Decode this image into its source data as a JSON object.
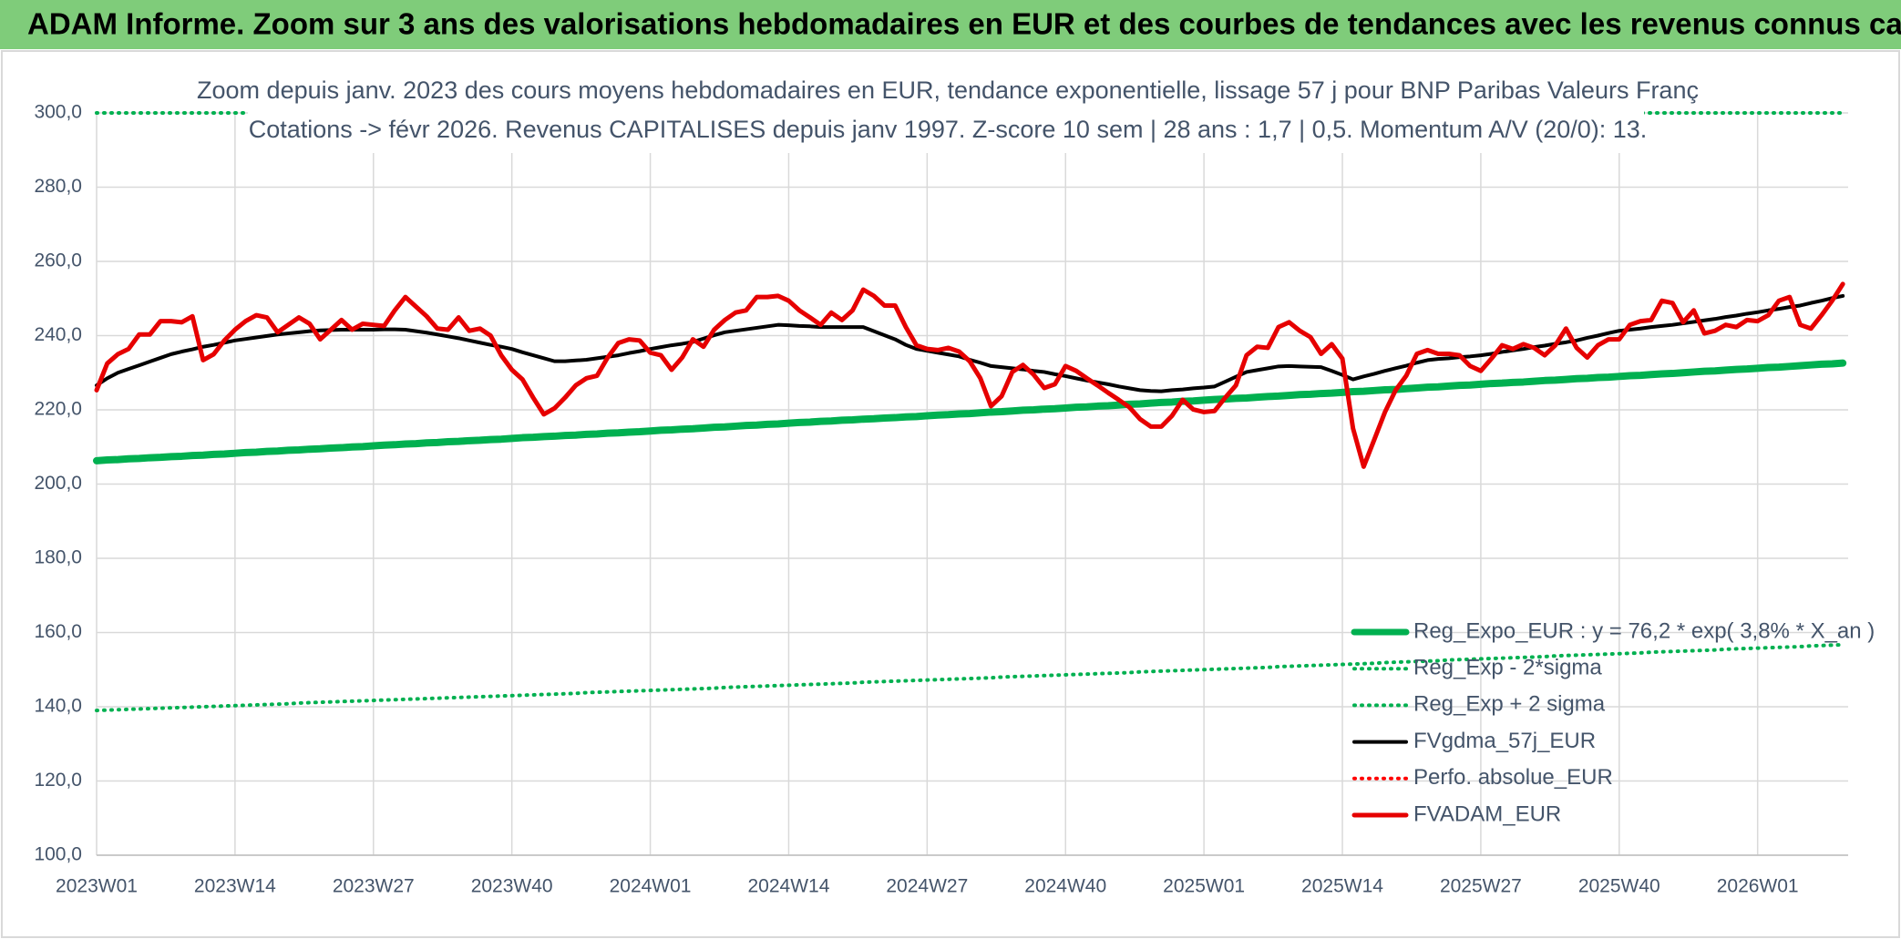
{
  "header": {
    "title": "ADAM Informe. Zoom sur 3 ans des valorisations hebdomadaires en EUR et des courbes de tendances avec les revenus connus capitalisés"
  },
  "chart_data": {
    "type": "line",
    "title": "Zoom depuis janv. 2023 des cours moyens hebdomadaires en EUR, tendance exponentielle, lissage 57 j pour BNP Paribas Valeurs Franç",
    "subtitle": "Cotations -> févr 2026. Revenus CAPITALISES depuis janv 1997. Z-score 10 sem | 28 ans : 1,7 | 0,5. Momentum A/V (20/0): 13.",
    "categories": [
      "2023W01",
      null,
      null,
      null,
      null,
      null,
      null,
      null,
      null,
      null,
      null,
      null,
      null,
      "2023W14",
      null,
      null,
      null,
      null,
      null,
      null,
      null,
      null,
      null,
      null,
      null,
      null,
      "2023W27",
      null,
      null,
      null,
      null,
      null,
      null,
      null,
      null,
      null,
      null,
      null,
      null,
      "2023W40",
      null,
      null,
      null,
      null,
      null,
      null,
      null,
      null,
      null,
      null,
      null,
      null,
      "2024W01",
      null,
      null,
      null,
      null,
      null,
      null,
      null,
      null,
      null,
      null,
      null,
      null,
      "2024W14",
      null,
      null,
      null,
      null,
      null,
      null,
      null,
      null,
      null,
      null,
      null,
      null,
      "2024W27",
      null,
      null,
      null,
      null,
      null,
      null,
      null,
      null,
      null,
      null,
      null,
      null,
      "2024W40",
      null,
      null,
      null,
      null,
      null,
      null,
      null,
      null,
      null,
      null,
      null,
      null,
      "2025W01",
      null,
      null,
      null,
      null,
      null,
      null,
      null,
      null,
      null,
      null,
      null,
      null,
      "2025W14",
      null,
      null,
      null,
      null,
      null,
      null,
      null,
      null,
      null,
      null,
      null,
      null,
      "2025W27",
      null,
      null,
      null,
      null,
      null,
      null,
      null,
      null,
      null,
      null,
      null,
      null,
      "2025W40",
      null,
      null,
      null,
      null,
      null,
      null,
      null,
      null,
      null,
      null,
      null,
      null,
      "2026W01",
      null,
      null,
      null,
      null,
      null,
      null,
      null,
      null
    ],
    "ylim": [
      100,
      300
    ],
    "yticks": [
      {
        "value": 100,
        "label": "100,0"
      },
      {
        "value": 120,
        "label": "120,0"
      },
      {
        "value": 140,
        "label": "140,0"
      },
      {
        "value": 160,
        "label": "160,0"
      },
      {
        "value": 180,
        "label": "180,0"
      },
      {
        "value": 200,
        "label": "200,0"
      },
      {
        "value": 220,
        "label": "220,0"
      },
      {
        "value": 240,
        "label": "240,0"
      },
      {
        "value": 260,
        "label": "260,0"
      },
      {
        "value": 280,
        "label": "280,0"
      },
      {
        "value": 300,
        "label": "300,0"
      }
    ],
    "grid": true,
    "legend": "lower right",
    "series": [
      {
        "name": "Reg_Expo_EUR : y = 76,2 * exp( 3,8% *  X_an )",
        "color": "#00b050",
        "style": "thick",
        "values": [
          206.3,
          206.5,
          206.6,
          206.8,
          206.9,
          207.1,
          207.2,
          207.4,
          207.5,
          207.7,
          207.8,
          208.0,
          208.1,
          208.3,
          208.5,
          208.6,
          208.8,
          208.9,
          209.1,
          209.2,
          209.4,
          209.5,
          209.7,
          209.8,
          210.0,
          210.1,
          210.3,
          210.5,
          210.6,
          210.8,
          210.9,
          211.1,
          211.2,
          211.4,
          211.5,
          211.7,
          211.8,
          212.0,
          212.1,
          212.3,
          212.5,
          212.6,
          212.8,
          212.9,
          213.1,
          213.2,
          213.4,
          213.5,
          213.7,
          213.8,
          214.0,
          214.1,
          214.3,
          214.5,
          214.6,
          214.8,
          214.9,
          215.1,
          215.3,
          215.4,
          215.6,
          215.8,
          215.9,
          216.1,
          216.2,
          216.4,
          216.6,
          216.7,
          216.9,
          217.0,
          217.2,
          217.3,
          217.5,
          217.6,
          217.8,
          217.9,
          218.1,
          218.2,
          218.4,
          218.6,
          218.7,
          218.9,
          219.0,
          219.2,
          219.4,
          219.5,
          219.7,
          219.9,
          220.0,
          220.2,
          220.3,
          220.5,
          220.7,
          220.8,
          221.0,
          221.1,
          221.3,
          221.5,
          221.6,
          221.8,
          222.0,
          222.1,
          222.3,
          222.4,
          222.6,
          222.8,
          222.9,
          223.1,
          223.2,
          223.4,
          223.6,
          223.7,
          223.9,
          224.1,
          224.2,
          224.4,
          224.5,
          224.7,
          224.9,
          225.0,
          225.2,
          225.4,
          225.5,
          225.7,
          225.9,
          226.1,
          226.2,
          226.4,
          226.6,
          226.7,
          226.9,
          227.1,
          227.2,
          227.4,
          227.5,
          227.7,
          227.9,
          228.0,
          228.2,
          228.4,
          228.5,
          228.7,
          228.8,
          229.0,
          229.2,
          229.3,
          229.5,
          229.7,
          229.8,
          230.0,
          230.2,
          230.4,
          230.5,
          230.7,
          230.9,
          231.0,
          231.2,
          231.4,
          231.5,
          231.7,
          231.9,
          232.1,
          232.3,
          232.4,
          232.6
        ]
      },
      {
        "name": "Reg_Exp - 2*sigma",
        "color": "#00b050",
        "style": "dotted",
        "values": [
          139.0,
          139.1,
          139.2,
          139.3,
          139.4,
          139.5,
          139.6,
          139.7,
          139.8,
          139.9,
          140.0,
          140.1,
          140.2,
          140.3,
          140.4,
          140.5,
          140.6,
          140.7,
          140.8,
          141.0,
          141.1,
          141.2,
          141.3,
          141.4,
          141.5,
          141.6,
          141.7,
          141.8,
          141.9,
          142.0,
          142.1,
          142.2,
          142.3,
          142.4,
          142.5,
          142.6,
          142.7,
          142.8,
          142.9,
          143.0,
          143.1,
          143.2,
          143.3,
          143.4,
          143.5,
          143.6,
          143.8,
          143.9,
          144.0,
          144.1,
          144.2,
          144.3,
          144.4,
          144.5,
          144.6,
          144.7,
          144.8,
          144.9,
          145.0,
          145.2,
          145.3,
          145.4,
          145.5,
          145.6,
          145.7,
          145.8,
          145.9,
          146.0,
          146.1,
          146.2,
          146.3,
          146.4,
          146.6,
          146.7,
          146.8,
          146.9,
          147.0,
          147.1,
          147.2,
          147.3,
          147.4,
          147.5,
          147.6,
          147.7,
          147.8,
          148.0,
          148.1,
          148.2,
          148.3,
          148.4,
          148.5,
          148.6,
          148.7,
          148.8,
          148.9,
          149.0,
          149.1,
          149.2,
          149.4,
          149.5,
          149.6,
          149.7,
          149.8,
          149.9,
          150.0,
          150.1,
          150.2,
          150.3,
          150.4,
          150.5,
          150.6,
          150.8,
          150.9,
          151.0,
          151.1,
          151.2,
          151.3,
          151.4,
          151.5,
          151.6,
          151.7,
          151.9,
          152.0,
          152.1,
          152.2,
          152.3,
          152.4,
          152.6,
          152.7,
          152.8,
          152.9,
          153.0,
          153.1,
          153.2,
          153.3,
          153.4,
          153.5,
          153.7,
          153.8,
          153.9,
          154.0,
          154.1,
          154.2,
          154.3,
          154.4,
          154.5,
          154.7,
          154.8,
          154.9,
          155.0,
          155.1,
          155.2,
          155.3,
          155.5,
          155.6,
          155.7,
          155.8,
          155.9,
          156.0,
          156.1,
          156.2,
          156.4,
          156.5,
          156.6,
          156.7
        ]
      },
      {
        "name": "Reg_Exp + 2 sigma",
        "color": "#00b050",
        "style": "dotted",
        "values": [
          300,
          300,
          300,
          300,
          300,
          300,
          300,
          300,
          300,
          300,
          300,
          300,
          300,
          300,
          300,
          300,
          300,
          300,
          300,
          300,
          300,
          300,
          300,
          300,
          300,
          300,
          300,
          300,
          300,
          300,
          300,
          300,
          300,
          300,
          300,
          300,
          300,
          300,
          300,
          300,
          300,
          300,
          300,
          300,
          300,
          300,
          300,
          300,
          300,
          300,
          300,
          300,
          300,
          300,
          300,
          300,
          300,
          300,
          300,
          300,
          300,
          300,
          300,
          300,
          300,
          300,
          300,
          300,
          300,
          300,
          300,
          300,
          300,
          300,
          300,
          300,
          300,
          300,
          300,
          300,
          300,
          300,
          300,
          300,
          300,
          300,
          300,
          300,
          300,
          300,
          300,
          300,
          300,
          300,
          300,
          300,
          300,
          300,
          300,
          300,
          300,
          300,
          300,
          300,
          300,
          300,
          300,
          300,
          300,
          300,
          300,
          300,
          300,
          300,
          300,
          300,
          300,
          300,
          300,
          300,
          300,
          300,
          300,
          300,
          300,
          300,
          300,
          300,
          300,
          300,
          300,
          300,
          300,
          300,
          300,
          300,
          300,
          300,
          300,
          300,
          300,
          300,
          300,
          300,
          300,
          300,
          300,
          300,
          300,
          300,
          300,
          300,
          300,
          300,
          300,
          300,
          300,
          300,
          300,
          300,
          300,
          300,
          300,
          300,
          300
        ]
      },
      {
        "name": "FVgdma_57j_EUR",
        "color": "#000000",
        "style": "solid",
        "values": [
          226.6,
          228.5,
          230.0,
          231.0,
          232.0,
          233.0,
          234.0,
          235.0,
          235.7,
          236.3,
          237.0,
          237.5,
          238.1,
          238.7,
          239.1,
          239.5,
          239.9,
          240.3,
          240.6,
          240.9,
          241.2,
          241.4,
          241.5,
          241.6,
          241.6,
          241.6,
          241.6,
          241.7,
          241.7,
          241.6,
          241.2,
          240.8,
          240.3,
          239.8,
          239.3,
          238.7,
          238.1,
          237.5,
          237.0,
          236.4,
          235.5,
          234.7,
          233.9,
          233.1,
          233.1,
          233.3,
          233.5,
          233.9,
          234.3,
          234.7,
          235.3,
          235.8,
          236.4,
          236.9,
          237.4,
          237.8,
          238.3,
          239.2,
          240.1,
          240.9,
          241.3,
          241.7,
          242.1,
          242.5,
          242.9,
          242.8,
          242.6,
          242.5,
          242.3,
          242.3,
          242.3,
          242.3,
          242.3,
          241.2,
          240.1,
          239.0,
          237.5,
          236.4,
          235.9,
          235.4,
          234.9,
          234.4,
          233.5,
          232.7,
          231.8,
          231.5,
          231.2,
          230.9,
          230.5,
          230.2,
          229.6,
          229.1,
          228.5,
          227.9,
          227.4,
          226.9,
          226.3,
          225.8,
          225.3,
          225.1,
          225.0,
          225.3,
          225.5,
          225.8,
          226.0,
          226.3,
          227.6,
          228.9,
          230.2,
          230.7,
          231.2,
          231.7,
          231.8,
          231.7,
          231.6,
          231.5,
          230.5,
          229.4,
          228.2,
          229.0,
          229.7,
          230.5,
          231.2,
          231.9,
          232.7,
          233.4,
          233.7,
          233.9,
          234.2,
          234.4,
          234.7,
          235.1,
          235.6,
          236.0,
          236.4,
          236.9,
          237.3,
          237.8,
          238.2,
          238.7,
          239.4,
          240.0,
          240.7,
          241.3,
          241.6,
          241.9,
          242.3,
          242.6,
          242.9,
          243.3,
          243.7,
          244.1,
          244.5,
          245.0,
          245.4,
          245.9,
          246.3,
          246.8,
          247.2,
          247.7,
          248.1,
          248.8,
          249.4,
          250.1,
          250.7
        ]
      },
      {
        "name": "Perfo. absolue_EUR",
        "color": "#ff0000",
        "style": "dotted"
      },
      {
        "name": "FVADAM_EUR",
        "color": "#e60000",
        "style": "red",
        "values": [
          225.3,
          232.5,
          235.0,
          236.4,
          240.3,
          240.3,
          243.9,
          243.9,
          243.6,
          245.2,
          233.4,
          235.0,
          238.7,
          241.6,
          243.9,
          245.5,
          244.9,
          240.9,
          242.9,
          244.9,
          243.2,
          239.0,
          241.6,
          244.2,
          241.6,
          243.2,
          242.9,
          242.6,
          246.8,
          250.4,
          247.8,
          245.2,
          241.9,
          241.6,
          244.9,
          241.3,
          241.9,
          240.0,
          234.7,
          230.8,
          228.2,
          223.3,
          218.8,
          220.4,
          223.3,
          226.6,
          228.5,
          229.2,
          234.1,
          238.0,
          239.0,
          238.7,
          235.4,
          234.7,
          230.8,
          234.1,
          239.0,
          237.0,
          241.6,
          244.2,
          246.2,
          246.8,
          250.4,
          250.4,
          250.7,
          249.4,
          246.8,
          244.9,
          242.9,
          246.2,
          244.2,
          246.8,
          252.4,
          250.7,
          248.1,
          248.1,
          242.3,
          237.4,
          236.4,
          236.1,
          236.7,
          235.7,
          233.1,
          228.5,
          221.0,
          223.7,
          230.2,
          232.1,
          229.5,
          225.9,
          226.9,
          231.8,
          230.5,
          228.5,
          226.6,
          224.6,
          222.7,
          220.7,
          217.5,
          215.5,
          215.5,
          218.4,
          222.7,
          220.1,
          219.4,
          219.7,
          223.3,
          226.6,
          234.7,
          237.0,
          236.7,
          242.3,
          243.6,
          241.3,
          239.6,
          235.1,
          237.7,
          233.8,
          215.0,
          204.7,
          212.0,
          219.4,
          225.3,
          229.2,
          235.1,
          236.1,
          235.1,
          235.1,
          234.7,
          231.8,
          230.5,
          233.8,
          237.4,
          236.4,
          237.7,
          236.7,
          234.7,
          237.4,
          241.9,
          236.7,
          234.1,
          237.4,
          239.0,
          239.0,
          242.9,
          243.9,
          244.2,
          249.4,
          248.8,
          243.6,
          246.8,
          240.6,
          241.3,
          242.9,
          242.3,
          244.2,
          243.9,
          245.5,
          249.4,
          250.4,
          242.9,
          241.9,
          245.5,
          249.4,
          253.9
        ]
      }
    ]
  }
}
